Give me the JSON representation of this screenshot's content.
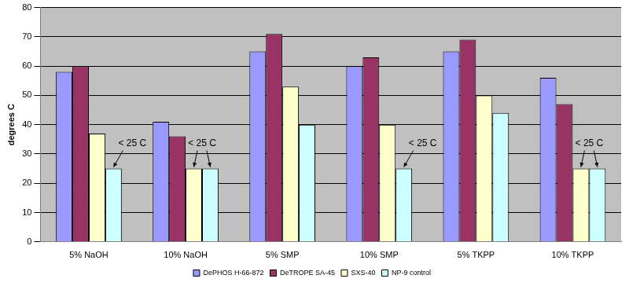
{
  "chart_data": {
    "type": "bar",
    "y_label": "degrees C",
    "categories": [
      "5% NaOH",
      "10% NaOH",
      "5% SMP",
      "10% SMP",
      "5% TKPP",
      "10% TKPP"
    ],
    "series": [
      {
        "name": "DePHOS H-66-872",
        "color": "#9999ff",
        "values": [
          58,
          41,
          65,
          60,
          65,
          56
        ]
      },
      {
        "name": "DeTROPE SA-45",
        "color": "#993366",
        "values": [
          60,
          36,
          71,
          63,
          69,
          47
        ]
      },
      {
        "name": "SXS-40",
        "color": "#ffffcc",
        "values": [
          37,
          25,
          53,
          40,
          50,
          25
        ]
      },
      {
        "name": "NP-9 control",
        "color": "#ccffff",
        "values": [
          25,
          25,
          40,
          25,
          44,
          25
        ]
      }
    ],
    "annotations": [
      {
        "text": "< 25 C",
        "category": "5% NaOH",
        "series": [
          "NP-9 control"
        ]
      },
      {
        "text": "< 25 C",
        "category": "10% NaOH",
        "series": [
          "SXS-40",
          "NP-9 control"
        ]
      },
      {
        "text": "< 25 C",
        "category": "10% SMP",
        "series": [
          "NP-9 control"
        ]
      },
      {
        "text": "< 25 C",
        "category": "10% TKPP",
        "series": [
          "SXS-40",
          "NP-9 control"
        ]
      }
    ],
    "ylim": [
      0,
      80
    ],
    "yticks": [
      0,
      10,
      20,
      30,
      40,
      50,
      60,
      70,
      80
    ],
    "grid": true,
    "legend": "bottom"
  }
}
